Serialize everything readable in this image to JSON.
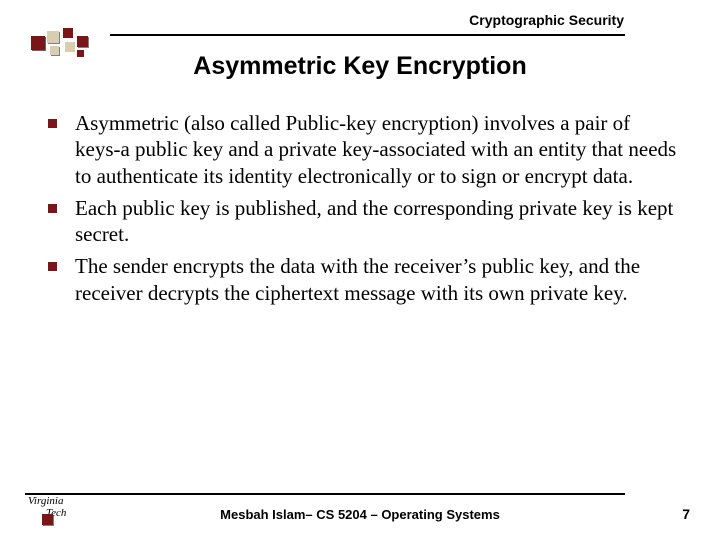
{
  "header": {
    "course_topic": "Cryptographic Security"
  },
  "title": "Asymmetric Key Encryption",
  "bullets": [
    "Asymmetric (also called Public-key encryption) involves a pair of keys-a public key and a private key-associated with an entity that needs to authenticate its identity electronically or to sign or encrypt data.",
    "Each public key is published, and the corresponding private key is kept secret.",
    "The sender encrypts the data with the receiver’s public key, and the receiver decrypts the ciphertext message with its own private key."
  ],
  "footer": {
    "credit": "Mesbah Islam– CS 5204 – Operating Systems",
    "page": "7",
    "logo_line1": "Virginia",
    "logo_line2": "Tech"
  },
  "colors": {
    "accent_maroon": "#7a1518",
    "accent_tan": "#d9cdb0",
    "rule": "#000000",
    "text": "#000000",
    "background": "#ffffff"
  },
  "fonts": {
    "heading_family": "Arial",
    "body_family": "Times New Roman",
    "title_size_pt": 25,
    "body_size_pt": 21,
    "header_label_size_pt": 14,
    "footer_size_pt": 13
  }
}
